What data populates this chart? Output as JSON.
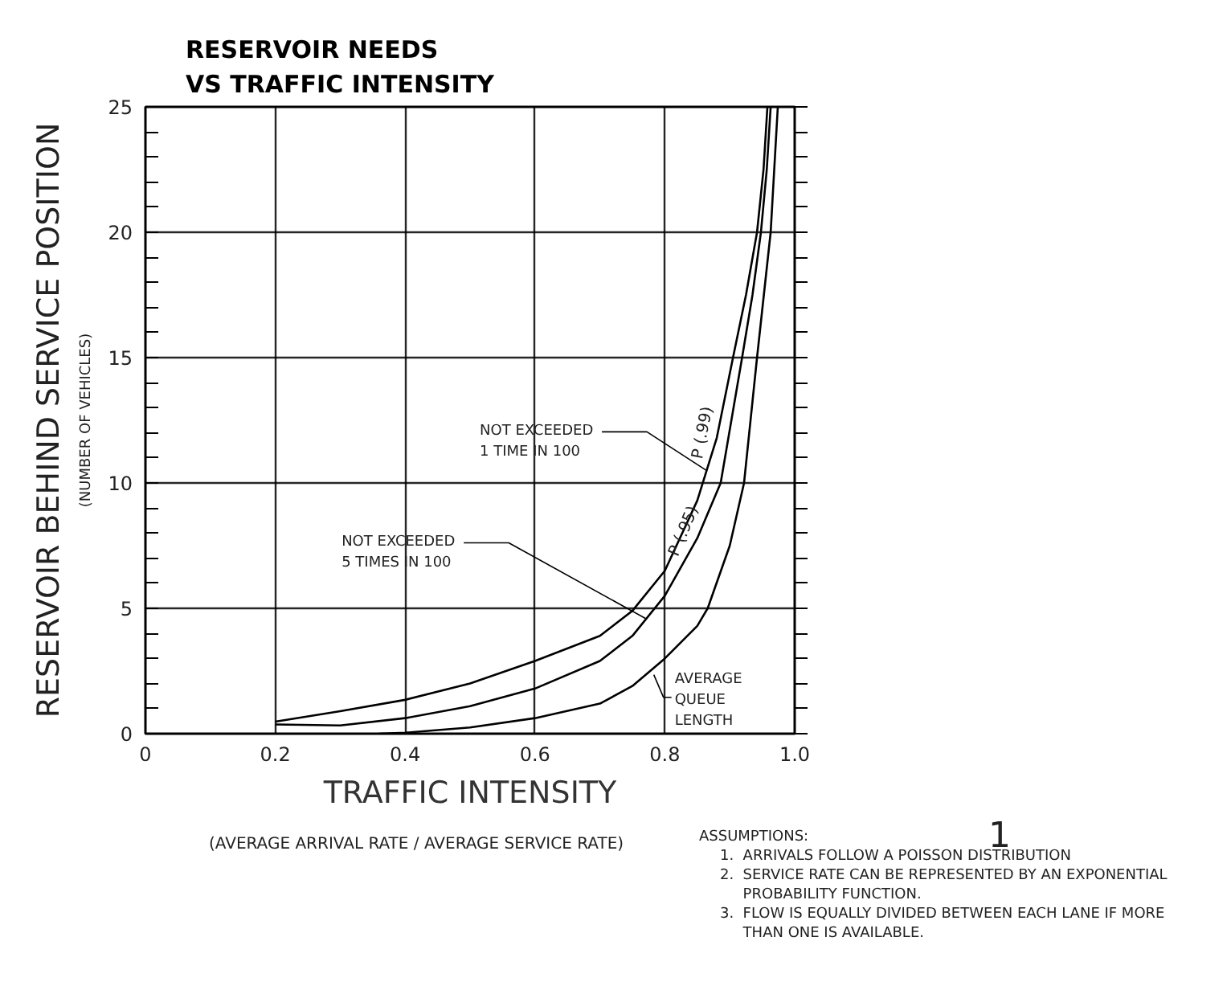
{
  "chart_data": {
    "type": "line",
    "title": "RESERVOIR NEEDS\nVS TRAFFIC INTENSITY",
    "xlabel": "TRAFFIC INTENSITY",
    "ylabel": "RESERVOIR BEHIND SERVICE POSITION",
    "xlim": [
      0,
      1.0
    ],
    "ylim": [
      0,
      25
    ],
    "xticks": [
      0,
      0.2,
      0.4,
      0.6,
      0.8,
      {
        "value": 1.0,
        "label": "1.0"
      }
    ],
    "yticks": [
      0,
      5,
      10,
      15,
      20,
      25
    ],
    "grid": true,
    "marker": "none",
    "line_style": "solid",
    "series": [
      {
        "name": "P (.99)",
        "color": "#000000",
        "x": [
          0.2,
          0.3,
          0.4,
          0.5,
          0.6,
          0.7,
          0.75,
          0.8,
          0.85,
          0.88,
          0.905,
          0.925,
          0.942,
          0.952,
          0.958
        ],
        "values": [
          0.48,
          0.9,
          1.35,
          2.0,
          2.9,
          3.9,
          4.9,
          6.5,
          9.3,
          11.8,
          15,
          17.5,
          20,
          22.5,
          25
        ]
      },
      {
        "name": "P (.95)",
        "color": "#000000",
        "x": [
          0.2,
          0.3,
          0.4,
          0.5,
          0.6,
          0.7,
          0.75,
          0.8,
          0.85,
          0.886,
          0.919,
          0.935,
          0.948,
          0.957,
          0.963
        ],
        "values": [
          0.37,
          0.33,
          0.62,
          1.1,
          1.8,
          2.9,
          3.9,
          5.5,
          7.8,
          10,
          15,
          17.5,
          20,
          22.5,
          25
        ]
      },
      {
        "color": "#000000",
        "x": [
          0.36,
          0.4,
          0.5,
          0.6,
          0.7,
          0.75,
          0.8,
          0.85,
          0.866,
          0.9,
          0.922,
          0.942,
          0.963,
          0.974
        ],
        "values": [
          0,
          0.04,
          0.25,
          0.62,
          1.2,
          1.9,
          3.0,
          4.3,
          5,
          7.5,
          10,
          15,
          20,
          25
        ]
      }
    ],
    "annotations": [
      {
        "text": "NOT EXCEEDED\n1 TIME IN 100",
        "x": 0.864,
        "y": 10.5
      },
      {
        "text": "NOT EXCEEDED\n5 TIMES IN 100",
        "x": 0.77,
        "y": 4.6
      },
      {
        "text": "AVERAGE\nQUEUE\nLENGTH",
        "x": 0.783,
        "y": 2.35
      },
      "(NUMBER OF VEHICLES)",
      "(AVERAGE ARRIVAL RATE / AVERAGE SERVICE RATE)",
      "1",
      "ASSUMPTIONS:",
      "1.  ARRIVALS FOLLOW A POISSON DISTRIBUTION",
      "2.  SERVICE RATE CAN BE REPRESENTED BY AN EXPONENTIAL\n     PROBABILITY FUNCTION.",
      "3.  FLOW IS EQUALLY DIVIDED BETWEEN EACH LANE IF MORE\n     THAN ONE IS AVAILABLE."
    ]
  }
}
